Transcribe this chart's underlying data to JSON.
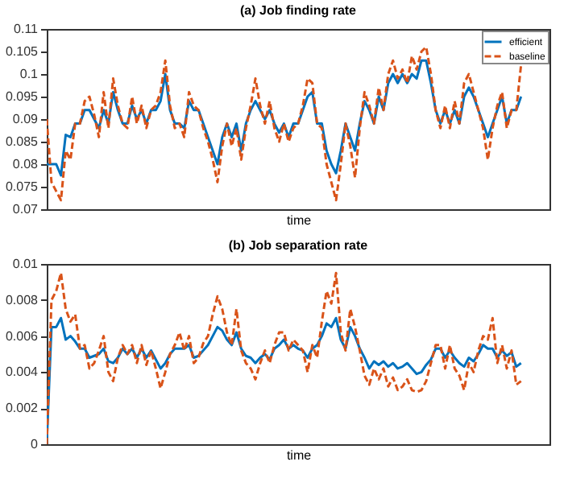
{
  "chart_data": [
    {
      "type": "line",
      "title": "(a) Job finding rate",
      "xlabel": "time",
      "categories": [
        null,
        null,
        null,
        null,
        null,
        null,
        null,
        null,
        null,
        null,
        null,
        null,
        null,
        null,
        null,
        null,
        null,
        null,
        null,
        null,
        null,
        null,
        null,
        null,
        null,
        null,
        null,
        null,
        null,
        null,
        null,
        null,
        null,
        null,
        null,
        null,
        null,
        null,
        null,
        null,
        null,
        null,
        null,
        null,
        null,
        null,
        null,
        null,
        null,
        null,
        null,
        null,
        null,
        null,
        null,
        null,
        null,
        null,
        null,
        null,
        null,
        null,
        null,
        null,
        null,
        null,
        null,
        null,
        null,
        null,
        null,
        null,
        null,
        null,
        null,
        null,
        null,
        null,
        null,
        null,
        null,
        null,
        null,
        null,
        null,
        null,
        null,
        null,
        null,
        null,
        null,
        null,
        null,
        null,
        null,
        null,
        null,
        null,
        null,
        null,
        null,
        null,
        null,
        null,
        null,
        null,
        null
      ],
      "series": [
        {
          "name": "efficient",
          "color": "#0072bd",
          "line_style": "solid",
          "values": [
            0.08,
            0.08,
            0.08,
            0.0775,
            0.0865,
            0.086,
            0.089,
            0.089,
            0.092,
            0.092,
            0.09,
            0.088,
            0.092,
            0.089,
            0.096,
            0.092,
            0.089,
            0.089,
            0.093,
            0.09,
            0.092,
            0.089,
            0.092,
            0.092,
            0.094,
            0.1,
            0.092,
            0.089,
            0.089,
            0.088,
            0.094,
            0.092,
            0.092,
            0.089,
            0.086,
            0.083,
            0.08,
            0.086,
            0.089,
            0.086,
            0.089,
            0.083,
            0.089,
            0.092,
            0.094,
            0.092,
            0.09,
            0.092,
            0.089,
            0.087,
            0.089,
            0.086,
            0.089,
            0.089,
            0.092,
            0.095,
            0.096,
            0.089,
            0.089,
            0.083,
            0.08,
            0.078,
            0.083,
            0.089,
            0.086,
            0.083,
            0.089,
            0.094,
            0.092,
            0.089,
            0.095,
            0.092,
            0.098,
            0.1,
            0.098,
            0.1,
            0.098,
            0.1,
            0.099,
            0.103,
            0.103,
            0.098,
            0.092,
            0.089,
            0.092,
            0.089,
            0.092,
            0.089,
            0.095,
            0.097,
            0.095,
            0.092,
            0.089,
            0.086,
            0.089,
            0.092,
            0.095,
            0.089,
            0.092,
            0.092,
            0.095,
            null,
            null,
            null,
            null,
            null,
            null
          ]
        },
        {
          "name": "baseline",
          "color": "#d95319",
          "line_style": "dashed",
          "values": [
            0.09,
            0.076,
            0.074,
            0.072,
            0.083,
            0.081,
            0.089,
            0.089,
            0.094,
            0.095,
            0.091,
            0.086,
            0.096,
            0.088,
            0.099,
            0.093,
            0.089,
            0.088,
            0.095,
            0.089,
            0.093,
            0.088,
            0.092,
            0.093,
            0.096,
            0.103,
            0.093,
            0.088,
            0.089,
            0.086,
            0.096,
            0.093,
            0.092,
            0.088,
            0.085,
            0.081,
            0.076,
            0.084,
            0.089,
            0.084,
            0.088,
            0.081,
            0.088,
            0.093,
            0.099,
            0.093,
            0.089,
            0.094,
            0.088,
            0.085,
            0.089,
            0.085,
            0.088,
            0.089,
            0.093,
            0.099,
            0.098,
            0.089,
            0.088,
            0.08,
            0.076,
            0.072,
            0.08,
            0.089,
            0.084,
            0.077,
            0.088,
            0.096,
            0.093,
            0.089,
            0.097,
            0.092,
            0.1,
            0.103,
            0.099,
            0.101,
            0.098,
            0.104,
            0.101,
            0.105,
            0.106,
            0.1,
            0.092,
            0.088,
            0.093,
            0.088,
            0.094,
            0.089,
            0.098,
            0.1,
            0.096,
            0.092,
            0.088,
            0.081,
            0.088,
            0.093,
            0.096,
            0.088,
            0.092,
            0.092,
            0.102,
            null,
            null,
            null,
            null,
            null,
            null
          ]
        }
      ],
      "ylim": [
        0.07,
        0.11
      ],
      "yticks": [
        0.07,
        0.075,
        0.08,
        0.085,
        0.09,
        0.095,
        0.1,
        0.105,
        0.11
      ],
      "tick_labels": "y",
      "grid": false,
      "legend": "top right"
    },
    {
      "type": "line",
      "title": "(b) Job separation rate",
      "xlabel": "time",
      "categories": [
        null,
        null,
        null,
        null,
        null,
        null,
        null,
        null,
        null,
        null,
        null,
        null,
        null,
        null,
        null,
        null,
        null,
        null,
        null,
        null,
        null,
        null,
        null,
        null,
        null,
        null,
        null,
        null,
        null,
        null,
        null,
        null,
        null,
        null,
        null,
        null,
        null,
        null,
        null,
        null,
        null,
        null,
        null,
        null,
        null,
        null,
        null,
        null,
        null,
        null,
        null,
        null,
        null,
        null,
        null,
        null,
        null,
        null,
        null,
        null,
        null,
        null,
        null,
        null,
        null,
        null,
        null,
        null,
        null,
        null,
        null,
        null,
        null,
        null,
        null,
        null,
        null,
        null,
        null,
        null,
        null,
        null,
        null,
        null,
        null,
        null,
        null,
        null,
        null,
        null,
        null,
        null,
        null,
        null,
        null,
        null,
        null,
        null,
        null,
        null,
        null,
        null,
        null,
        null,
        null,
        null,
        null
      ],
      "series": [
        {
          "name": "efficient",
          "color": "#0072bd",
          "line_style": "solid",
          "values": [
            0.0,
            0.0065,
            0.0065,
            0.007,
            0.0058,
            0.006,
            0.0057,
            0.0053,
            0.0053,
            0.0048,
            0.0049,
            0.005,
            0.0053,
            0.0046,
            0.0045,
            0.0048,
            0.0053,
            0.005,
            0.0053,
            0.0048,
            0.0053,
            0.0048,
            0.0052,
            0.0047,
            0.0042,
            0.0045,
            0.005,
            0.0053,
            0.0053,
            0.0053,
            0.0055,
            0.0048,
            0.0049,
            0.0052,
            0.0055,
            0.006,
            0.0065,
            0.0063,
            0.0058,
            0.0055,
            0.0062,
            0.0053,
            0.0049,
            0.0048,
            0.0045,
            0.0048,
            0.005,
            0.0047,
            0.0053,
            0.0055,
            0.0058,
            0.0053,
            0.0055,
            0.0053,
            0.0052,
            0.0048,
            0.0053,
            0.0055,
            0.006,
            0.0067,
            0.0065,
            0.007,
            0.0058,
            0.0053,
            0.0065,
            0.006,
            0.0053,
            0.0048,
            0.0042,
            0.0046,
            0.0044,
            0.0046,
            0.0043,
            0.0045,
            0.0042,
            0.0043,
            0.0045,
            0.0042,
            0.0039,
            0.004,
            0.0044,
            0.0047,
            0.0053,
            0.0053,
            0.0048,
            0.0052,
            0.0048,
            0.0045,
            0.0043,
            0.0048,
            0.0046,
            0.005,
            0.0055,
            0.0053,
            0.0053,
            0.0048,
            0.0052,
            0.0049,
            0.0051,
            0.0043,
            0.0045,
            null,
            null,
            null,
            null,
            null,
            null
          ]
        },
        {
          "name": "baseline",
          "color": "#d95319",
          "line_style": "dashed",
          "values": [
            0.0,
            0.008,
            0.0085,
            0.0095,
            0.0075,
            0.0068,
            0.0072,
            0.0053,
            0.0055,
            0.0042,
            0.0045,
            0.0052,
            0.006,
            0.004,
            0.0035,
            0.0048,
            0.0055,
            0.005,
            0.0055,
            0.0045,
            0.0055,
            0.0044,
            0.0052,
            0.0042,
            0.0031,
            0.004,
            0.005,
            0.0055,
            0.0062,
            0.0052,
            0.006,
            0.0045,
            0.0048,
            0.0056,
            0.006,
            0.0072,
            0.0082,
            0.0075,
            0.0062,
            0.0055,
            0.0075,
            0.0052,
            0.0045,
            0.0042,
            0.0036,
            0.0045,
            0.0052,
            0.0045,
            0.0055,
            0.0062,
            0.0062,
            0.0052,
            0.0058,
            0.0055,
            0.0052,
            0.004,
            0.0055,
            0.0048,
            0.0068,
            0.0085,
            0.0078,
            0.0095,
            0.0062,
            0.0052,
            0.0075,
            0.0065,
            0.0052,
            0.0038,
            0.0033,
            0.0042,
            0.0036,
            0.0042,
            0.0032,
            0.0037,
            0.003,
            0.0032,
            0.0036,
            0.003,
            0.0029,
            0.003,
            0.0035,
            0.0045,
            0.0055,
            0.0055,
            0.0042,
            0.0055,
            0.0042,
            0.0038,
            0.003,
            0.0045,
            0.004,
            0.0052,
            0.006,
            0.0058,
            0.007,
            0.0045,
            0.0055,
            0.0042,
            0.0052,
            0.0033,
            0.0035,
            null,
            null,
            null,
            null,
            null,
            null
          ]
        }
      ],
      "ylim": [
        0,
        0.01
      ],
      "yticks": [
        0,
        0.002,
        0.004,
        0.006,
        0.008,
        0.01
      ],
      "tick_labels": "y",
      "grid": false,
      "legend": "top right"
    }
  ]
}
